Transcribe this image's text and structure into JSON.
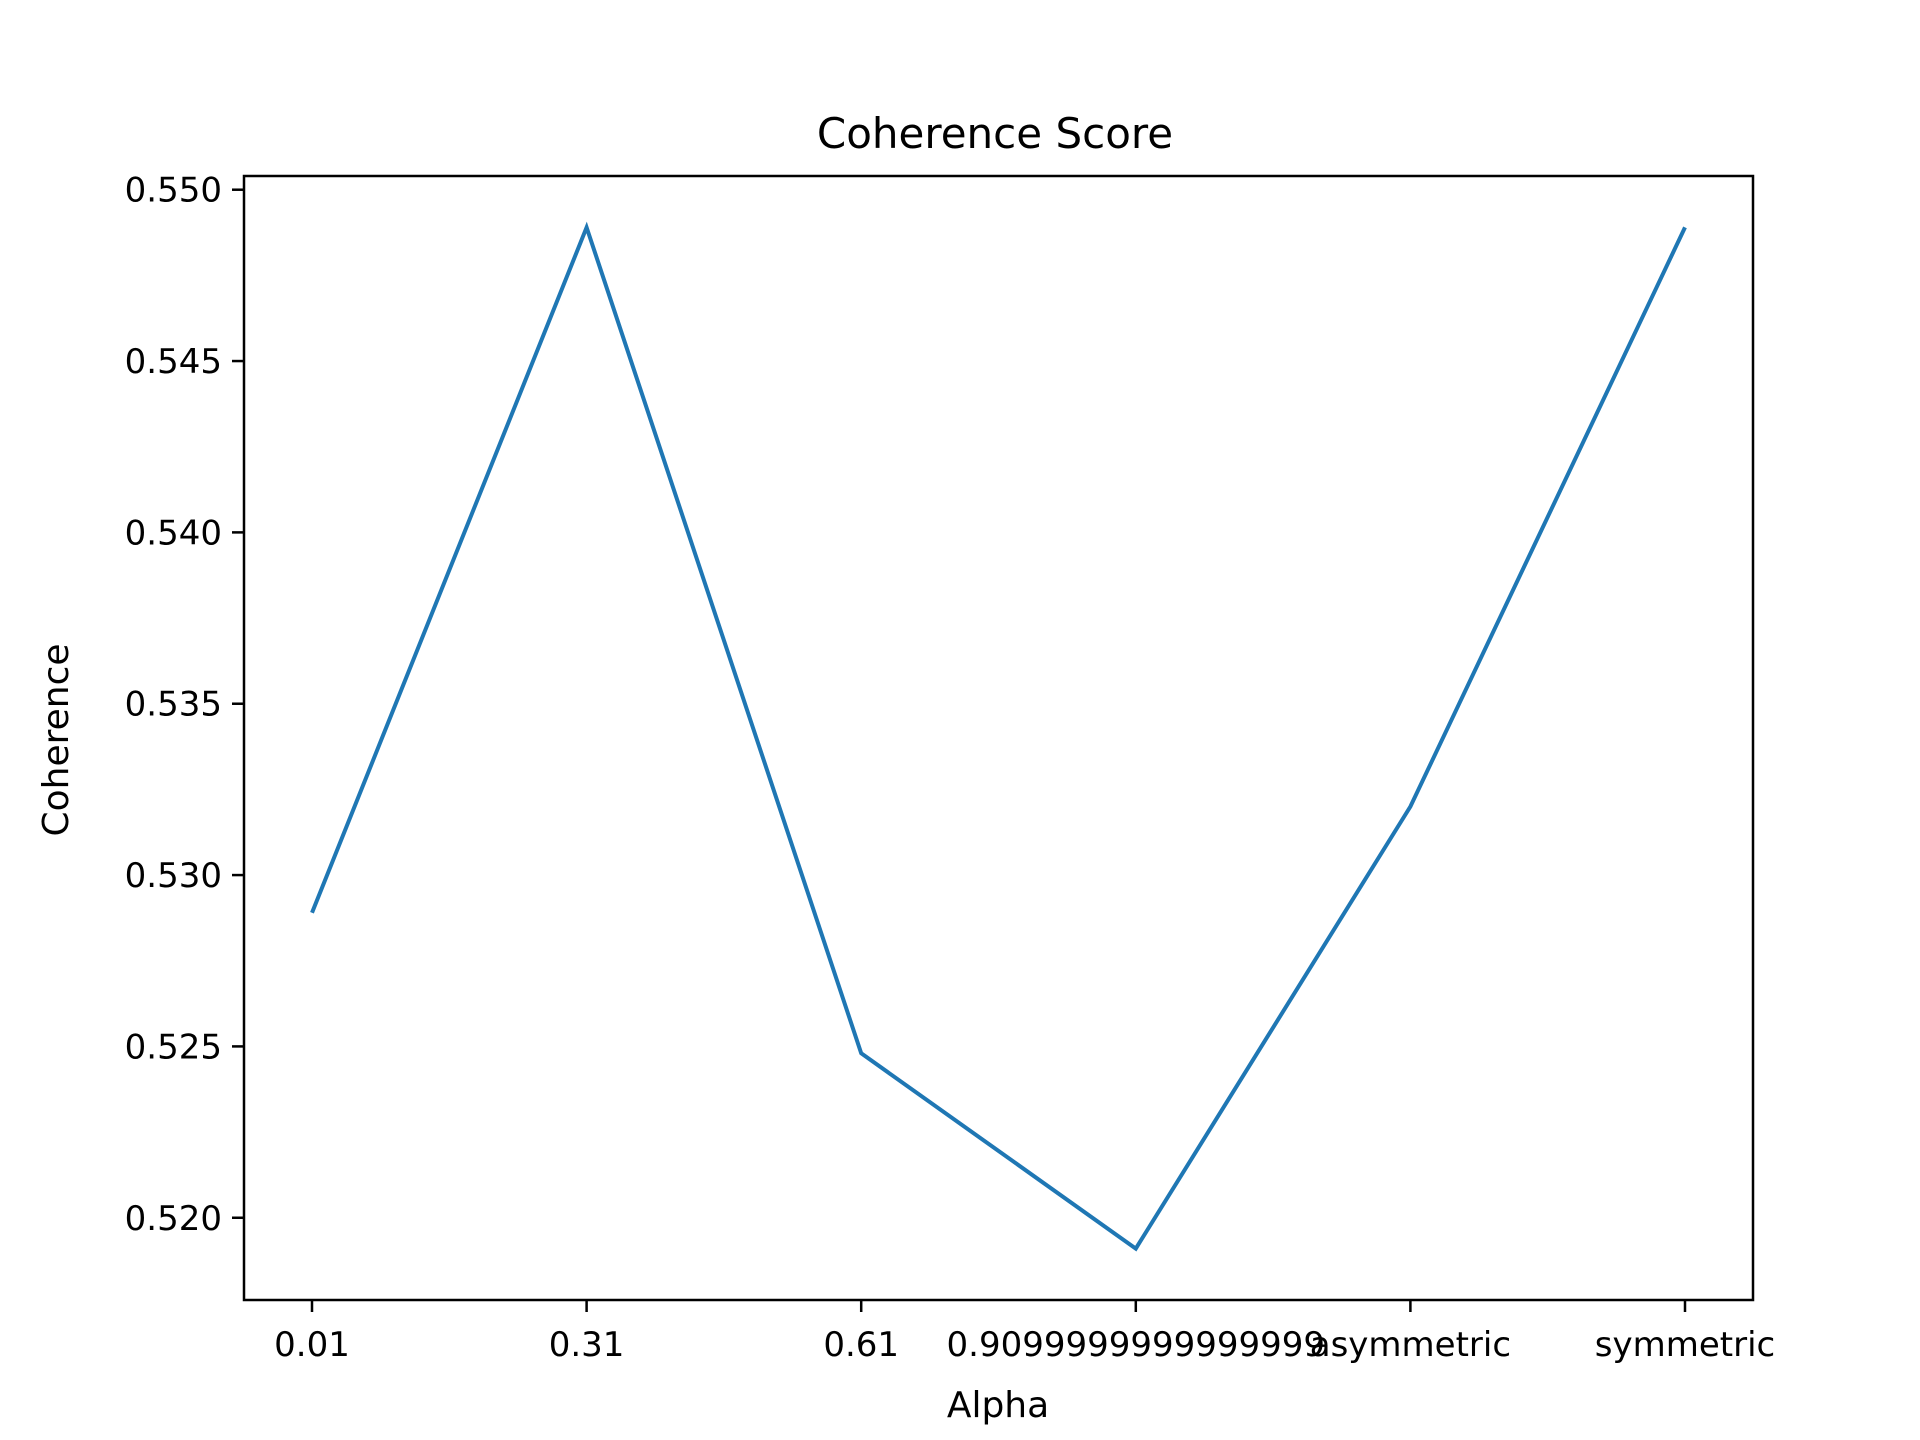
{
  "chart_data": {
    "type": "line",
    "title": "Coherence Score",
    "xlabel": "Alpha",
    "ylabel": "Coherence",
    "categories": [
      "0.01",
      "0.31",
      "0.61",
      "0.9099999999999999",
      "asymmetric",
      "symmetric"
    ],
    "series": [
      {
        "values": [
          0.5289,
          0.5489,
          0.5248,
          0.5191,
          0.532,
          0.5489
        ]
      }
    ],
    "ylim": [
      0.5176,
      0.5504
    ],
    "yticks": [
      "0.520",
      "0.525",
      "0.530",
      "0.535",
      "0.540",
      "0.545",
      "0.550"
    ],
    "grid": false,
    "line_color": "#1f77b4"
  }
}
